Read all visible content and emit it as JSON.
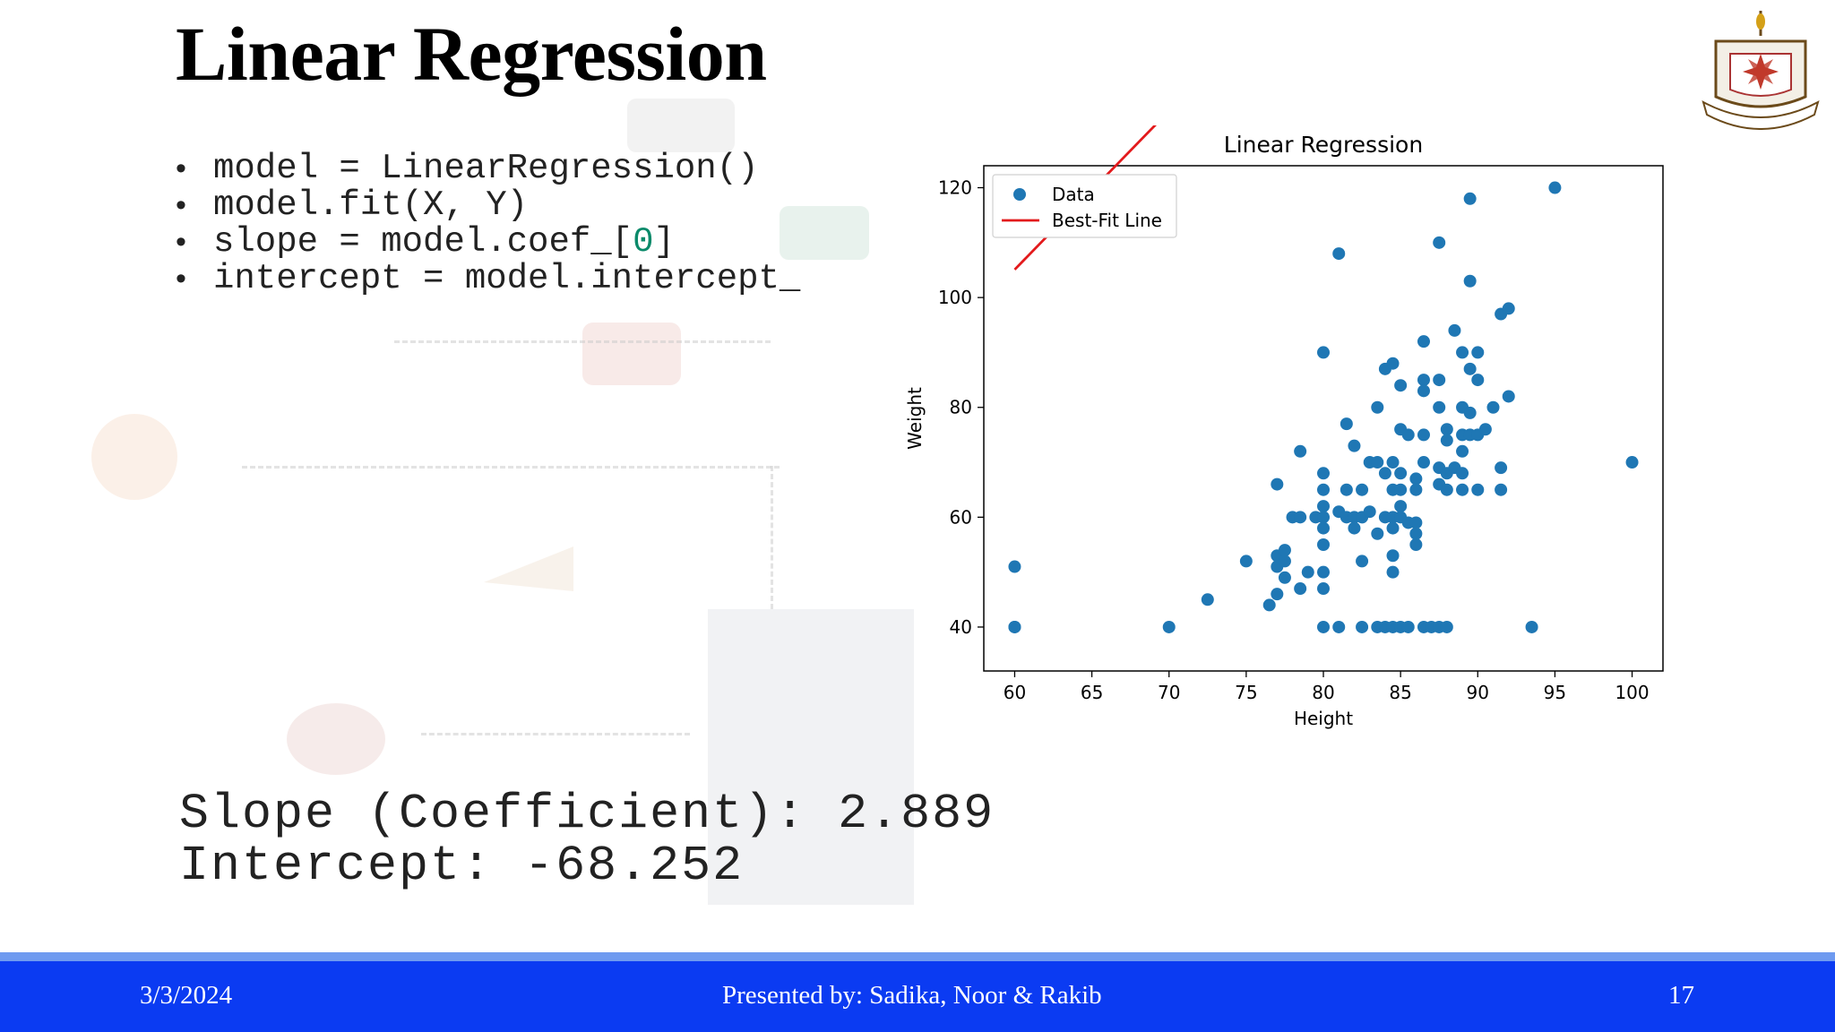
{
  "slide": {
    "title": "Linear Regression",
    "code_lines": [
      "model = LinearRegression()",
      "model.fit(X, Y)",
      "slope = model.coef_[0]",
      "intercept = model.intercept_"
    ],
    "results": {
      "slope_line": "Slope (Coefficient): 2.889",
      "intercept_line": "Intercept: -68.252"
    }
  },
  "footer": {
    "date": "3/3/2024",
    "presenter": "Presented by: Sadika, Noor & Rakib",
    "page": "17"
  },
  "colors": {
    "footer_bar": "#0b3bf2",
    "footer_strip": "#6e9af0",
    "data_points": "#1f77b4",
    "fit_line": "#e31a1c"
  },
  "icons": [
    "university-logo-icon"
  ],
  "chart_data": {
    "type": "scatter",
    "title": "Linear Regression",
    "xlabel": "Height",
    "ylabel": "Weight",
    "xlim": [
      58,
      102
    ],
    "ylim": [
      32,
      124
    ],
    "xticks": [
      60,
      65,
      70,
      75,
      80,
      85,
      90,
      95,
      100
    ],
    "yticks": [
      40,
      60,
      80,
      100,
      120
    ],
    "legend": {
      "placement": "top-left",
      "entries": [
        "Data",
        "Best-Fit Line"
      ]
    },
    "series": [
      {
        "name": "Data",
        "type": "scatter",
        "points": [
          [
            60,
            51
          ],
          [
            60,
            40
          ],
          [
            60,
            40
          ],
          [
            70,
            40
          ],
          [
            72.5,
            45
          ],
          [
            75,
            52
          ],
          [
            76.5,
            44
          ],
          [
            77,
            46
          ],
          [
            77,
            51
          ],
          [
            77,
            53
          ],
          [
            77.5,
            52
          ],
          [
            77.5,
            54
          ],
          [
            77,
            66
          ],
          [
            77.5,
            49
          ],
          [
            78,
            60
          ],
          [
            78.5,
            72
          ],
          [
            78.5,
            47
          ],
          [
            78.5,
            60
          ],
          [
            79,
            50
          ],
          [
            79.5,
            60
          ],
          [
            80,
            90
          ],
          [
            80,
            68
          ],
          [
            80,
            65
          ],
          [
            80,
            62
          ],
          [
            80,
            60
          ],
          [
            80,
            58
          ],
          [
            80,
            55
          ],
          [
            80,
            50
          ],
          [
            80,
            47
          ],
          [
            80,
            40
          ],
          [
            81,
            61
          ],
          [
            81,
            40
          ],
          [
            81,
            108
          ],
          [
            81.5,
            77
          ],
          [
            81.5,
            65
          ],
          [
            81.5,
            60
          ],
          [
            82,
            73
          ],
          [
            82,
            60
          ],
          [
            82,
            58
          ],
          [
            82.5,
            65
          ],
          [
            82.5,
            60
          ],
          [
            82.5,
            52
          ],
          [
            82.5,
            40
          ],
          [
            83,
            70
          ],
          [
            83,
            61
          ],
          [
            83.5,
            80
          ],
          [
            83.5,
            70
          ],
          [
            83.5,
            57
          ],
          [
            83.5,
            40
          ],
          [
            84,
            87
          ],
          [
            84,
            68
          ],
          [
            84,
            60
          ],
          [
            84,
            40
          ],
          [
            84.5,
            88
          ],
          [
            84.5,
            70
          ],
          [
            84.5,
            65
          ],
          [
            84.5,
            60
          ],
          [
            84.5,
            58
          ],
          [
            84.5,
            53
          ],
          [
            84.5,
            50
          ],
          [
            84.5,
            40
          ],
          [
            85,
            84
          ],
          [
            85,
            76
          ],
          [
            85,
            68
          ],
          [
            85,
            65
          ],
          [
            85,
            62
          ],
          [
            85,
            60
          ],
          [
            85,
            40
          ],
          [
            85.5,
            75
          ],
          [
            85.5,
            59
          ],
          [
            85.5,
            40
          ],
          [
            86,
            67
          ],
          [
            86,
            65
          ],
          [
            86,
            59
          ],
          [
            86,
            57
          ],
          [
            86,
            55
          ],
          [
            86.5,
            92
          ],
          [
            86.5,
            85
          ],
          [
            86.5,
            83
          ],
          [
            86.5,
            75
          ],
          [
            86.5,
            70
          ],
          [
            86.5,
            40
          ],
          [
            87,
            40
          ],
          [
            87.5,
            110
          ],
          [
            87.5,
            85
          ],
          [
            87.5,
            80
          ],
          [
            87.5,
            69
          ],
          [
            87.5,
            66
          ],
          [
            87.5,
            40
          ],
          [
            88,
            76
          ],
          [
            88,
            74
          ],
          [
            88,
            68
          ],
          [
            88,
            65
          ],
          [
            88,
            40
          ],
          [
            88.5,
            94
          ],
          [
            88.5,
            69
          ],
          [
            89,
            90
          ],
          [
            89,
            80
          ],
          [
            89,
            75
          ],
          [
            89,
            72
          ],
          [
            89,
            68
          ],
          [
            89,
            65
          ],
          [
            89.5,
            118
          ],
          [
            89.5,
            103
          ],
          [
            89.5,
            87
          ],
          [
            89.5,
            79
          ],
          [
            89.5,
            75
          ],
          [
            90,
            90
          ],
          [
            90,
            85
          ],
          [
            90,
            75
          ],
          [
            90,
            65
          ],
          [
            90.5,
            76
          ],
          [
            91,
            80
          ],
          [
            91.5,
            97
          ],
          [
            91.5,
            69
          ],
          [
            91.5,
            65
          ],
          [
            92,
            98
          ],
          [
            92,
            82
          ],
          [
            93.5,
            40
          ],
          [
            95,
            120
          ],
          [
            100,
            70
          ]
        ]
      },
      {
        "name": "Best-Fit Line",
        "type": "line",
        "slope": 2.889,
        "intercept": -68.252,
        "x": [
          60,
          100
        ]
      }
    ]
  }
}
